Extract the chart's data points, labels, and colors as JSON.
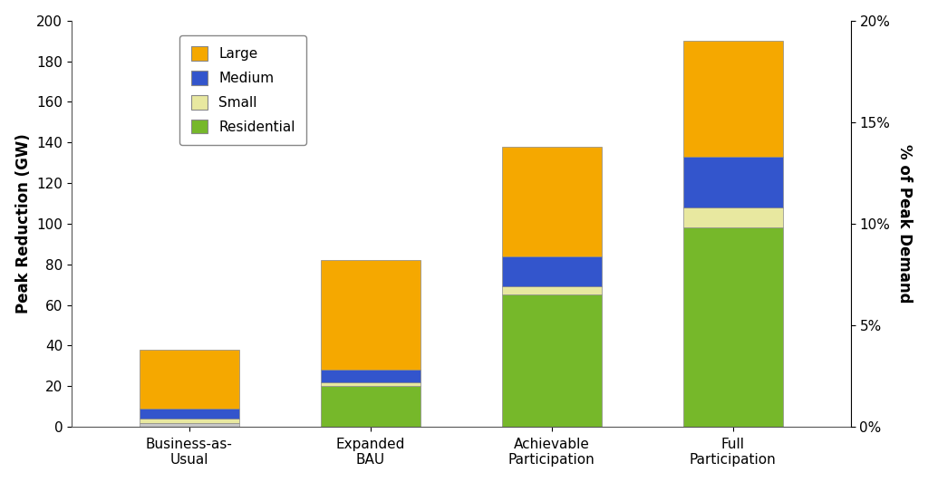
{
  "categories": [
    "Business-as-\nUsual",
    "Expanded\nBAU",
    "Achievable\nParticipation",
    "Full\nParticipation"
  ],
  "segments": {
    "Residential": [
      2,
      20,
      65,
      98
    ],
    "Small": [
      2,
      2,
      4,
      10
    ],
    "Medium": [
      5,
      6,
      15,
      25
    ],
    "Large": [
      29,
      54,
      54,
      57
    ]
  },
  "colors": {
    "Residential": "#76b82a",
    "Small": "#e8e8a0",
    "Medium": "#3355cc",
    "Large": "#f5a800"
  },
  "residential_bau_color": "#c8c8c8",
  "ylabel_left": "Peak Reduction (GW)",
  "ylabel_right": "% of Peak Demand",
  "ylim_left": [
    0,
    200
  ],
  "yticks_left": [
    0,
    20,
    40,
    60,
    80,
    100,
    120,
    140,
    160,
    180,
    200
  ],
  "yticks_right_labels": [
    "0%",
    "5%",
    "10%",
    "15%",
    "20%"
  ],
  "yticks_right_vals": [
    0,
    50,
    100,
    150,
    200
  ],
  "background_color": "#ffffff",
  "bar_width": 0.55,
  "legend_order": [
    "Large",
    "Medium",
    "Small",
    "Residential"
  ]
}
